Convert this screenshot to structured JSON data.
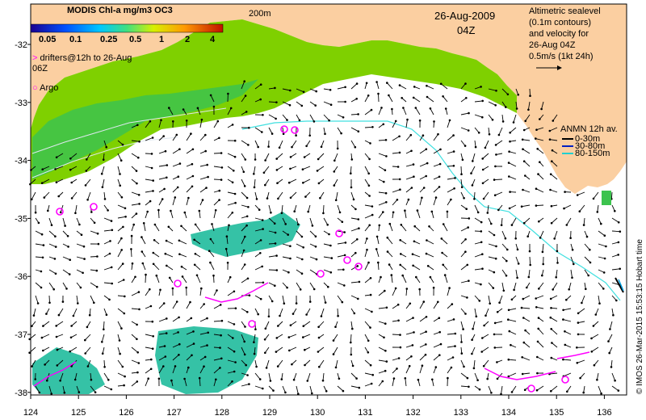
{
  "map": {
    "date": "26-Aug-2009",
    "time": "04Z",
    "isobath_label": "200m",
    "credit": "© IMOS 26-Mar-2015 15:53:15 Hobart time"
  },
  "colorbar": {
    "title": "MODIS Chl-a mg/m3 OC3",
    "tick_labels": [
      "0.05",
      "0.1",
      "0.25",
      "0.5",
      "1",
      "2",
      "4"
    ]
  },
  "legend": {
    "drifters": "drifters@12h to 26-Aug 06Z",
    "argo": "Argo",
    "altimetry": [
      "Altimetric sealevel",
      "(0.1m contours)",
      "and velocity for",
      "26-Aug 04Z",
      "0.5m/s (1kt 24h)"
    ],
    "anmn_title": "ANMN 12h av.",
    "anmn_items": [
      "0-30m",
      "30-80m",
      "80-150m"
    ]
  },
  "axes": {
    "x_ticks": [
      "124",
      "125",
      "126",
      "127",
      "128",
      "129",
      "130",
      "131",
      "132",
      "133",
      "134",
      "135",
      "136"
    ],
    "y_ticks": [
      "-32",
      "-33",
      "-34",
      "-35",
      "-36",
      "-37",
      "-38"
    ]
  },
  "colors": {
    "land": "#fbcfa1",
    "ocean": "#ffffff",
    "chl_high": "#7fd000",
    "chl_mid": "#3cc34e",
    "chl_low": "#35c2a6",
    "drifter": "#ff00ff",
    "isobath": "#40e0e0"
  }
}
